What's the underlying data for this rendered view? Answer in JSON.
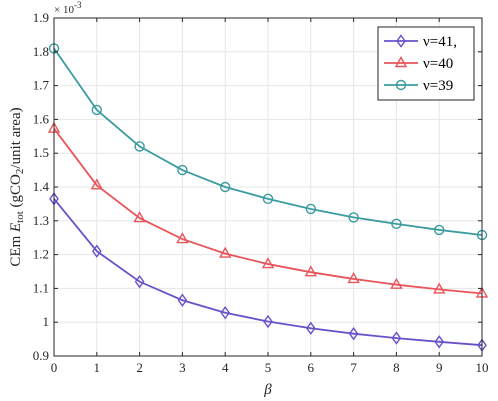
{
  "chart_data": {
    "type": "line",
    "xlabel": "β",
    "ylabel_parts": [
      "CEm ",
      "E",
      "tot",
      " (gCO",
      "2",
      "/unit area)"
    ],
    "y_exponent": "× 10",
    "y_exponent_power": "-3",
    "x": [
      0,
      1,
      2,
      3,
      4,
      5,
      6,
      7,
      8,
      9,
      10
    ],
    "xlim": [
      0,
      10
    ],
    "ylim": [
      0.9,
      1.9
    ],
    "xticks": [
      "0",
      "1",
      "2",
      "3",
      "4",
      "5",
      "6",
      "7",
      "8",
      "9",
      "10"
    ],
    "yticks": [
      "0.9",
      "1",
      "1.1",
      "1.2",
      "1.3",
      "1.4",
      "1.5",
      "1.6",
      "1.7",
      "1.8",
      "1.9"
    ],
    "ytick_values": [
      0.9,
      1.0,
      1.1,
      1.2,
      1.3,
      1.4,
      1.5,
      1.6,
      1.7,
      1.8,
      1.9
    ],
    "grid": true,
    "legend_position": "top-right",
    "series": [
      {
        "name": "ν=41,",
        "color": "#6a51c9",
        "marker": "diamond",
        "values": [
          1.365,
          1.21,
          1.12,
          1.065,
          1.028,
          1.002,
          0.982,
          0.966,
          0.953,
          0.942,
          0.932
        ]
      },
      {
        "name": "ν=40",
        "color": "#e8555a",
        "marker": "triangle",
        "values": [
          1.573,
          1.405,
          1.308,
          1.246,
          1.203,
          1.172,
          1.148,
          1.128,
          1.111,
          1.097,
          1.085
        ]
      },
      {
        "name": "ν=39",
        "color": "#3a9ca0",
        "marker": "circle",
        "values": [
          1.81,
          1.628,
          1.52,
          1.45,
          1.4,
          1.365,
          1.335,
          1.31,
          1.291,
          1.273,
          1.258
        ]
      }
    ]
  }
}
